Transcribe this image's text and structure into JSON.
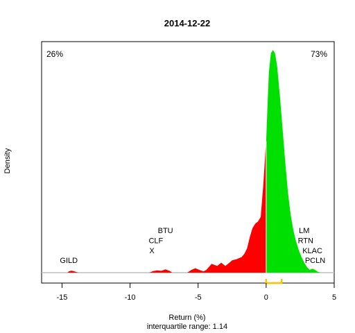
{
  "chart_data": {
    "type": "area",
    "title": "2014-12-22",
    "xlabel": "Return (%)",
    "ylabel": "Density",
    "subtitle": "interquartile range: 1.14",
    "xlim": [
      -16.5,
      5
    ],
    "ylim": [
      0,
      1.0
    ],
    "x_ticks": [
      -15,
      -10,
      -5,
      0,
      5
    ],
    "x_tick_labels": [
      "-15",
      "-10",
      "-5",
      "0",
      "5"
    ],
    "split_at": 0,
    "negative_share_label": "26%",
    "positive_share_label": "73%",
    "colors": {
      "negative": "#ff0000",
      "positive": "#00e000",
      "baseline": "#bebebe",
      "iqr_bracket": "#ffc000",
      "negative_label": "#ff0000",
      "positive_label": "#008000"
    },
    "iqr": [
      0,
      1.14
    ],
    "density_x": [
      -14.6,
      -14.5,
      -14.3,
      -14.1,
      -13.9,
      -13.8,
      -8.6,
      -8.3,
      -8.0,
      -7.7,
      -7.4,
      -7.1,
      -6.9,
      -5.8,
      -5.5,
      -5.2,
      -4.9,
      -4.6,
      -4.4,
      -4.0,
      -3.6,
      -3.3,
      -3.0,
      -2.7,
      -2.5,
      -2.2,
      -2.0,
      -1.8,
      -1.6,
      -1.4,
      -1.2,
      -1.0,
      -0.8,
      -0.6,
      -0.4,
      -0.2,
      -0.05,
      0.0,
      0.1,
      0.2,
      0.35,
      0.5,
      0.65,
      0.8,
      1.0,
      1.2,
      1.4,
      1.6,
      1.8,
      2.0,
      2.2,
      2.4,
      2.6,
      2.8,
      3.0,
      3.2,
      3.4,
      3.6,
      3.8,
      4.0
    ],
    "density_y": [
      0.0,
      0.006,
      0.009,
      0.006,
      0.002,
      0.0,
      0.0,
      0.007,
      0.01,
      0.008,
      0.015,
      0.008,
      0.0,
      0.0,
      0.012,
      0.02,
      0.012,
      0.006,
      0.012,
      0.04,
      0.03,
      0.045,
      0.03,
      0.045,
      0.055,
      0.06,
      0.065,
      0.07,
      0.085,
      0.11,
      0.16,
      0.2,
      0.22,
      0.23,
      0.25,
      0.4,
      0.55,
      0.59,
      0.75,
      0.9,
      0.985,
      1.0,
      0.985,
      0.93,
      0.8,
      0.65,
      0.5,
      0.36,
      0.26,
      0.19,
      0.14,
      0.1,
      0.07,
      0.045,
      0.025,
      0.012,
      0.018,
      0.012,
      0.004,
      0.0
    ],
    "annotations": [
      {
        "text": "GILD",
        "x": -14.5,
        "y": 0.043,
        "anchor": "middle"
      },
      {
        "text": "X",
        "x": -8.4,
        "y": 0.087,
        "anchor": "middle"
      },
      {
        "text": "CLF",
        "x": -8.1,
        "y": 0.132,
        "anchor": "middle"
      },
      {
        "text": "BTU",
        "x": -7.4,
        "y": 0.178,
        "anchor": "middle"
      },
      {
        "text": "PCLN",
        "x": 3.6,
        "y": 0.043,
        "anchor": "middle"
      },
      {
        "text": "KLAC",
        "x": 3.4,
        "y": 0.087,
        "anchor": "middle"
      },
      {
        "text": "RTN",
        "x": 2.9,
        "y": 0.132,
        "anchor": "middle"
      },
      {
        "text": "LM",
        "x": 2.8,
        "y": 0.178,
        "anchor": "middle"
      }
    ]
  }
}
